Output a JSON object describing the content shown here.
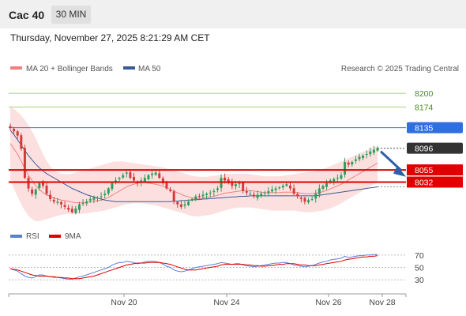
{
  "header": {
    "instrument": "Cac 40",
    "timeframe": "30 MIN"
  },
  "datetime": "Thursday, November 27, 2025 8:21:29 AM CET",
  "legend": {
    "bollinger": "MA 20 + Bollinger Bands",
    "ma50": "MA 50",
    "credit": "Research © 2025 Trading Central",
    "rsi": "RSI",
    "rsi_ma": "9MA"
  },
  "colors": {
    "candle_up": "#2e9e5b",
    "candle_down": "#d33a3a",
    "band_fill": "#fbd5d5",
    "ma20": "#f08080",
    "ma50": "#3d5a98",
    "resistance_line": "#a5cf7a",
    "pivot_line": "#2f6fe0",
    "support_line": "#e00000",
    "last_price": "#333333",
    "arrow": "#2f5ea8",
    "rsi_line": "#5b7fd9",
    "rsi_ma_line": "#e00000"
  },
  "chart_data": [
    {
      "type": "candlestick",
      "title": "",
      "ylim": [
        7955,
        8230
      ],
      "x_tick_labels": [
        "Nov 20",
        "Nov 24",
        "Nov 26",
        "Nov 28"
      ],
      "levels": [
        {
          "label": "8200",
          "value": 8200,
          "kind": "resistance"
        },
        {
          "label": "8174",
          "value": 8174,
          "kind": "resistance"
        },
        {
          "label": "8135",
          "value": 8135,
          "kind": "pivot"
        },
        {
          "label": "8096",
          "value": 8096,
          "kind": "last"
        },
        {
          "label": "8055",
          "value": 8055,
          "kind": "support"
        },
        {
          "label": "8032",
          "value": 8032,
          "kind": "support"
        }
      ],
      "close": [
        8135,
        8128,
        8120,
        8095,
        8040,
        8020,
        8010,
        8018,
        8030,
        8025,
        8010,
        8000,
        7995,
        7995,
        7990,
        7985,
        7980,
        7975,
        7982,
        7990,
        7992,
        7995,
        8000,
        8003,
        8002,
        8005,
        8010,
        8020,
        8030,
        8035,
        8040,
        8045,
        8050,
        8040,
        8035,
        8030,
        8035,
        8040,
        8045,
        8048,
        8050,
        8040,
        8030,
        8020,
        8015,
        7995,
        7990,
        7985,
        7990,
        7995,
        8000,
        8005,
        8005,
        8008,
        8010,
        8012,
        8015,
        8020,
        8040,
        8035,
        8030,
        8025,
        8028,
        8030,
        8015,
        8012,
        8010,
        8005,
        8008,
        8010,
        8012,
        8015,
        8018,
        8020,
        8022,
        8025,
        8028,
        8020,
        8010,
        8005,
        8000,
        7995,
        7998,
        8000,
        8010,
        8020,
        8025,
        8030,
        8035,
        8038,
        8040,
        8045,
        8070,
        8065,
        8070,
        8075,
        8080,
        8082,
        8085,
        8090,
        8093,
        8096
      ],
      "ma20": [
        8105,
        8095,
        8085,
        8072,
        8058,
        8045,
        8035,
        8025,
        8018,
        8012,
        8008,
        8005,
        8002,
        8000,
        7998,
        7997,
        7996,
        7994,
        7993,
        7993,
        7993,
        7994,
        7995,
        7996,
        7997,
        7998,
        8000,
        8003,
        8007,
        8011,
        8015,
        8019,
        8023,
        8026,
        8028,
        8030,
        8031,
        8031,
        8030,
        8029,
        8028,
        8026,
        8024,
        8021,
        8018,
        8015,
        8012,
        8009,
        8006,
        8004,
        8002,
        8001,
        8001,
        8002,
        8003,
        8004,
        8005,
        8007,
        8009,
        8011,
        8012,
        8013,
        8014,
        8015,
        8016,
        8016,
        8016,
        8015,
        8014,
        8013,
        8012,
        8012,
        8012,
        8012,
        8012,
        8013,
        8013,
        8013,
        8013,
        8012,
        8011,
        8010,
        8010,
        8010,
        8011,
        8012,
        8014,
        8016,
        8019,
        8022,
        8025,
        8028,
        8032,
        8036,
        8040,
        8044,
        8048,
        8052,
        8056,
        8060,
        8064,
        8068
      ],
      "bb_upper": [
        8175,
        8170,
        8165,
        8158,
        8150,
        8140,
        8128,
        8115,
        8100,
        8085,
        8072,
        8062,
        8055,
        8050,
        8048,
        8047,
        8047,
        8048,
        8050,
        8052,
        8054,
        8056,
        8058,
        8060,
        8062,
        8064,
        8066,
        8068,
        8070,
        8071,
        8071,
        8071,
        8070,
        8069,
        8068,
        8067,
        8066,
        8065,
        8064,
        8063,
        8062,
        8061,
        8060,
        8058,
        8056,
        8054,
        8052,
        8050,
        8048,
        8046,
        8044,
        8043,
        8042,
        8042,
        8042,
        8043,
        8044,
        8045,
        8046,
        8047,
        8048,
        8048,
        8048,
        8048,
        8048,
        8048,
        8047,
        8046,
        8045,
        8044,
        8043,
        8043,
        8043,
        8043,
        8043,
        8044,
        8045,
        8046,
        8047,
        8048,
        8049,
        8050,
        8051,
        8052,
        8053,
        8055,
        8057,
        8059,
        8062,
        8065,
        8068,
        8071,
        8074,
        8077,
        8080,
        8083,
        8086,
        8089,
        8092,
        8095,
        8098,
        8100
      ],
      "bb_lower": [
        8035,
        8020,
        8005,
        7990,
        7978,
        7968,
        7962,
        7958,
        7958,
        7960,
        7962,
        7964,
        7966,
        7968,
        7970,
        7971,
        7972,
        7972,
        7972,
        7972,
        7972,
        7973,
        7974,
        7975,
        7976,
        7977,
        7978,
        7980,
        7982,
        7984,
        7986,
        7988,
        7990,
        7991,
        7992,
        7992,
        7992,
        7991,
        7990,
        7989,
        7988,
        7986,
        7984,
        7982,
        7980,
        7978,
        7976,
        7974,
        7972,
        7970,
        7968,
        7967,
        7967,
        7968,
        7969,
        7970,
        7972,
        7974,
        7976,
        7978,
        7980,
        7982,
        7983,
        7984,
        7984,
        7984,
        7984,
        7983,
        7982,
        7981,
        7980,
        7979,
        7978,
        7978,
        7978,
        7978,
        7978,
        7978,
        7978,
        7977,
        7976,
        7975,
        7975,
        7975,
        7976,
        7977,
        7978,
        7980,
        7982,
        7985,
        7988,
        7992,
        7996,
        8000,
        8004,
        8008,
        8012,
        8016,
        8020,
        8024,
        8028,
        8032
      ],
      "ma50": [
        8130,
        8122,
        8112,
        8102,
        8092,
        8082,
        8074,
        8066,
        8059,
        8053,
        8048,
        8044,
        8040,
        8036,
        8032,
        8028,
        8024,
        8020,
        8017,
        8014,
        8011,
        8008,
        8006,
        8004,
        8002,
        8000,
        7998,
        7997,
        7996,
        7995,
        7995,
        7995,
        7995,
        7995,
        7995,
        7995,
        7995,
        7995,
        7995,
        7995,
        7995,
        7995,
        7995,
        7995,
        7995,
        7996,
        7996,
        7997,
        7997,
        7998,
        7998,
        7999,
        7999,
        8000,
        8000,
        8001,
        8001,
        8002,
        8002,
        8003,
        8003,
        8004,
        8004,
        8005,
        8005,
        8005,
        8006,
        8006,
        8006,
        8006,
        8006,
        8006,
        8006,
        8006,
        8006,
        8006,
        8006,
        8006,
        8006,
        8006,
        8006,
        8006,
        8006,
        8006,
        8006,
        8007,
        8008,
        8009,
        8010,
        8011,
        8012,
        8013,
        8014,
        8015,
        8016,
        8017,
        8018,
        8019,
        8020,
        8021,
        8022,
        8023
      ]
    },
    {
      "type": "line",
      "title": "",
      "ylim": [
        15,
        80
      ],
      "y_ticks": [
        30,
        50,
        70
      ],
      "series": [
        {
          "name": "RSI",
          "values": [
            48,
            46,
            44,
            40,
            36,
            34,
            33,
            35,
            38,
            38,
            36,
            35,
            34,
            34,
            33,
            32,
            31,
            31,
            33,
            35,
            36,
            38,
            40,
            42,
            44,
            46,
            48,
            50,
            54,
            56,
            58,
            58,
            60,
            59,
            58,
            56,
            57,
            59,
            60,
            60,
            60,
            58,
            55,
            52,
            50,
            46,
            44,
            43,
            44,
            46,
            48,
            50,
            51,
            52,
            53,
            54,
            55,
            56,
            58,
            57,
            56,
            55,
            56,
            56,
            54,
            53,
            52,
            51,
            52,
            53,
            54,
            55,
            56,
            57,
            57,
            58,
            58,
            56,
            54,
            53,
            52,
            51,
            52,
            53,
            55,
            57,
            59,
            60,
            62,
            63,
            64,
            65,
            68,
            66,
            67,
            68,
            69,
            69,
            70,
            70,
            71,
            71
          ]
        },
        {
          "name": "9MA",
          "values": [
            48,
            47,
            46,
            44,
            42,
            40,
            38,
            37,
            36,
            36,
            36,
            35,
            35,
            34,
            34,
            33,
            33,
            32,
            32,
            32,
            33,
            34,
            35,
            36,
            38,
            40,
            42,
            44,
            46,
            48,
            50,
            52,
            54,
            55,
            56,
            57,
            57,
            57,
            58,
            58,
            58,
            58,
            57,
            56,
            55,
            53,
            51,
            49,
            47,
            46,
            46,
            46,
            47,
            48,
            49,
            50,
            51,
            52,
            54,
            55,
            55,
            55,
            55,
            55,
            55,
            54,
            54,
            53,
            53,
            52,
            52,
            53,
            53,
            54,
            55,
            55,
            56,
            56,
            56,
            55,
            54,
            54,
            53,
            53,
            53,
            54,
            55,
            56,
            57,
            58,
            59,
            60,
            62,
            63,
            64,
            65,
            66,
            67,
            67,
            68,
            68,
            69
          ]
        }
      ]
    }
  ]
}
